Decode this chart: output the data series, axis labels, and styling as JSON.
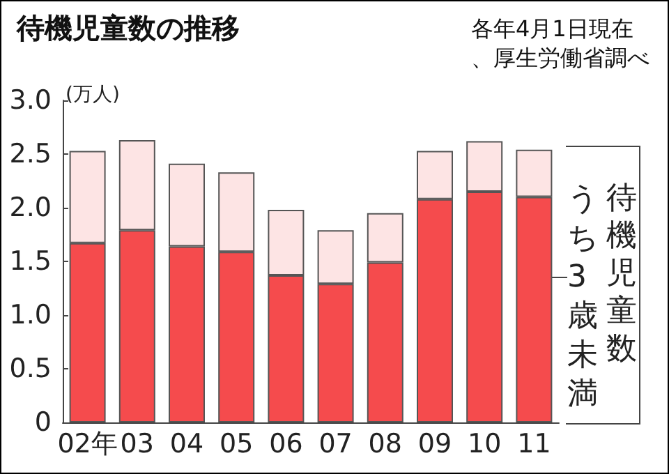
{
  "chart_data": {
    "type": "bar",
    "title": "待機児童数の推移",
    "subtitle": "各年4月1日現在、厚生労働省調べ",
    "ylabel": "(万人)",
    "categories": [
      "02年",
      "03",
      "04",
      "05",
      "06",
      "07",
      "08",
      "09",
      "10",
      "11"
    ],
    "series": [
      {
        "name": "うち3歳未満",
        "color": "#f54b4d",
        "values": [
          1.67,
          1.79,
          1.64,
          1.59,
          1.37,
          1.29,
          1.49,
          2.08,
          2.15,
          2.1
        ]
      },
      {
        "name": "待機児童数",
        "color": "#fde4e4",
        "values": [
          0.86,
          0.84,
          0.77,
          0.74,
          0.61,
          0.5,
          0.46,
          0.45,
          0.47,
          0.44
        ]
      }
    ],
    "stacked": true,
    "ylim": [
      0,
      3
    ],
    "yticks": [
      0,
      0.5,
      {
        "value": 1,
        "label": "1.0"
      },
      1.5,
      {
        "value": 2,
        "label": "2.0"
      },
      2.5,
      {
        "value": 3,
        "label": "3.0"
      }
    ],
    "grid": false,
    "legend": false
  }
}
